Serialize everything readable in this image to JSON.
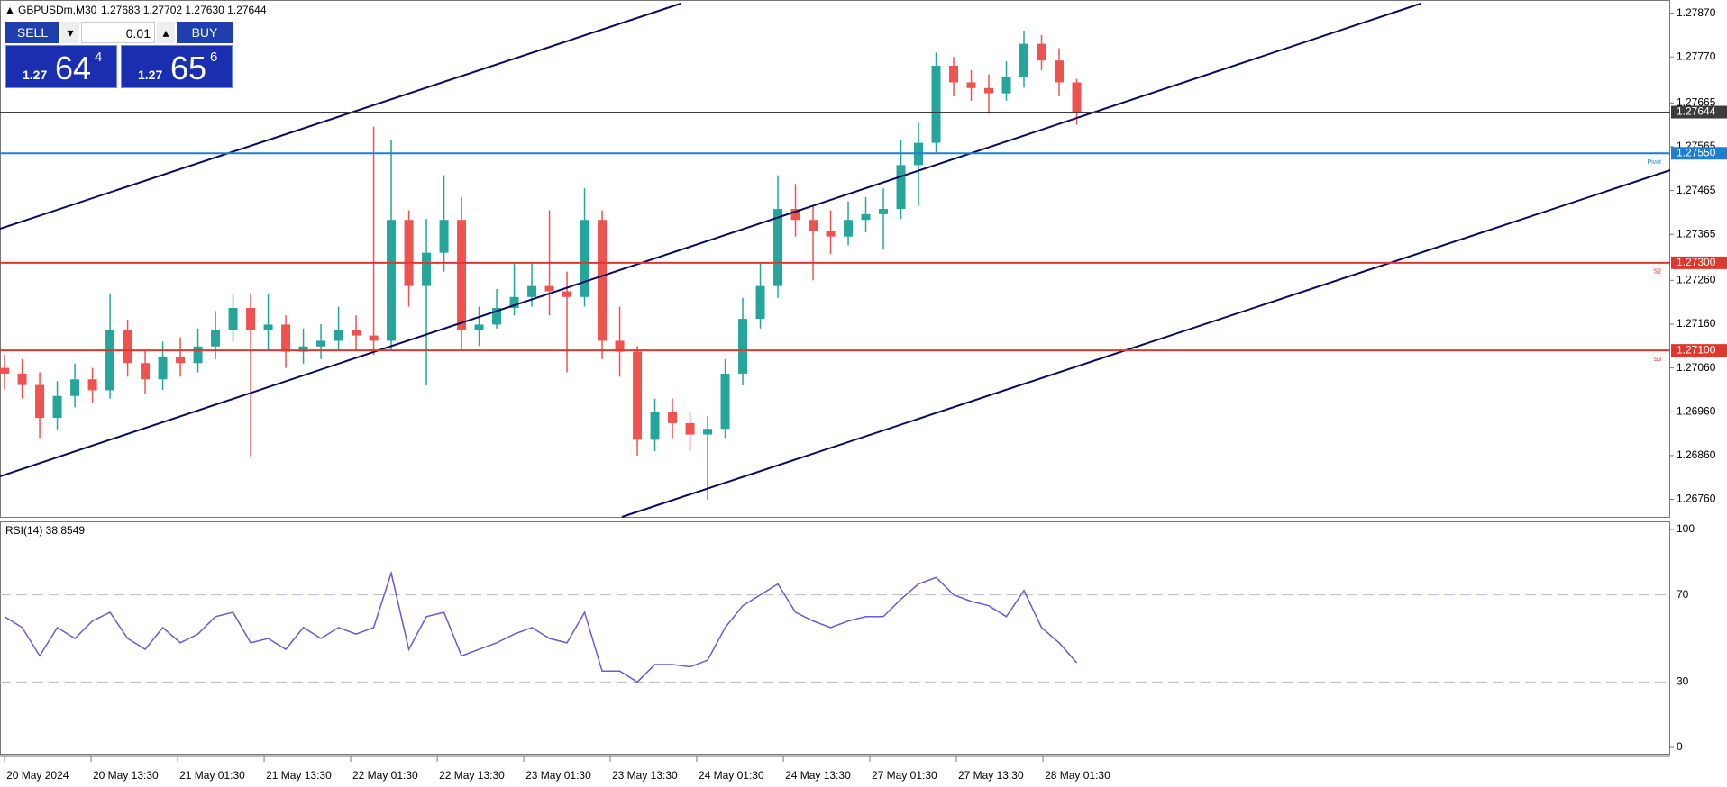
{
  "header": {
    "symbol": "GBPUSDm,M30",
    "quote": "1.27683 1.27702 1.27630 1.27644"
  },
  "trade_panel": {
    "sell": "SELL",
    "lot": "0.01",
    "buy": "BUY",
    "bid": {
      "prefix": "1.27",
      "big": "64",
      "pip": "4"
    },
    "ask": {
      "prefix": "1.27",
      "big": "65",
      "pip": "6"
    }
  },
  "chart_data": [
    {
      "type": "candlestick",
      "up_color": "#26a69a",
      "down_color": "#ef5350",
      "open": [
        1.2706,
        1.27047,
        1.27021,
        1.26946,
        1.26996,
        1.27034,
        1.27009,
        1.27147,
        1.27071,
        1.27034,
        1.27084,
        1.27071,
        1.27109,
        1.27147,
        1.27197,
        1.27147,
        1.27159,
        1.27097,
        1.27109,
        1.27122,
        1.27147,
        1.27134,
        1.27122,
        1.27398,
        1.27247,
        1.27323,
        1.27398,
        1.27147,
        1.27159,
        1.27197,
        1.27222,
        1.27247,
        1.27235,
        1.27222,
        1.27398,
        1.27122,
        1.27097,
        1.26896,
        1.26959,
        1.26934,
        1.26908,
        1.26921,
        1.27047,
        1.27172,
        1.27247,
        1.27423,
        1.27398,
        1.27373,
        1.2736,
        1.27398,
        1.27411,
        1.27423,
        1.27523,
        1.27574,
        1.2775,
        1.27712,
        1.27699,
        1.27687,
        1.27724,
        1.278,
        1.27762,
        1.27712
      ],
      "high": [
        1.2709,
        1.2708,
        1.2705,
        1.2703,
        1.2707,
        1.2706,
        1.2723,
        1.2717,
        1.271,
        1.2712,
        1.2713,
        1.2715,
        1.2719,
        1.2723,
        1.2723,
        1.2723,
        1.2718,
        1.2715,
        1.2716,
        1.272,
        1.2718,
        1.27611,
        1.2758,
        1.2742,
        1.274,
        1.275,
        1.2745,
        1.272,
        1.2724,
        1.273,
        1.273,
        1.2742,
        1.2728,
        1.2747,
        1.2742,
        1.272,
        1.2711,
        1.2699,
        1.2699,
        1.2696,
        1.2695,
        1.2708,
        1.2722,
        1.273,
        1.275,
        1.2748,
        1.2743,
        1.2742,
        1.2744,
        1.2745,
        1.2747,
        1.2758,
        1.2762,
        1.2778,
        1.2777,
        1.2774,
        1.2773,
        1.2776,
        1.2783,
        1.2782,
        1.2779,
        1.2772
      ],
      "low": [
        1.2701,
        1.2699,
        1.269,
        1.2692,
        1.2697,
        1.2698,
        1.2699,
        1.2704,
        1.27,
        1.2701,
        1.2704,
        1.2705,
        1.2708,
        1.2712,
        1.26858,
        1.271,
        1.2706,
        1.2707,
        1.2708,
        1.271,
        1.271,
        1.2709,
        1.271,
        1.272,
        1.2702,
        1.2728,
        1.271,
        1.2711,
        1.2715,
        1.2718,
        1.272,
        1.2718,
        1.2705,
        1.272,
        1.2708,
        1.2704,
        1.2686,
        1.2687,
        1.269,
        1.2687,
        1.26758,
        1.269,
        1.2702,
        1.2715,
        1.2722,
        1.2736,
        1.2726,
        1.2732,
        1.2734,
        1.2737,
        1.2733,
        1.274,
        1.2743,
        1.2755,
        1.2768,
        1.2767,
        1.2764,
        1.2767,
        1.277,
        1.2774,
        1.2768,
        1.27615
      ],
      "close": [
        1.27047,
        1.27021,
        1.26946,
        1.26996,
        1.27034,
        1.27009,
        1.27147,
        1.27071,
        1.27034,
        1.27084,
        1.27071,
        1.27109,
        1.27147,
        1.27197,
        1.27147,
        1.27159,
        1.27097,
        1.27109,
        1.27122,
        1.27147,
        1.27134,
        1.27122,
        1.27398,
        1.27247,
        1.27323,
        1.27398,
        1.27147,
        1.27159,
        1.27197,
        1.27222,
        1.27247,
        1.27235,
        1.27222,
        1.27398,
        1.27122,
        1.27097,
        1.26896,
        1.26959,
        1.26934,
        1.26908,
        1.26921,
        1.27047,
        1.27172,
        1.27247,
        1.27423,
        1.27398,
        1.27373,
        1.2736,
        1.27398,
        1.27411,
        1.27423,
        1.27523,
        1.27574,
        1.2775,
        1.27712,
        1.27699,
        1.27687,
        1.27724,
        1.278,
        1.27762,
        1.27712,
        1.27644
      ],
      "ylim": [
        1.2672,
        1.279
      ],
      "yticks": [
        {
          "value": 1.2787,
          "label": "1.27870"
        },
        {
          "value": 1.2777,
          "label": "1.27770"
        },
        {
          "value": 1.27665,
          "label": "1.27665"
        },
        {
          "value": 1.27565,
          "label": "1.27565"
        },
        {
          "value": 1.27465,
          "label": "1.27465"
        },
        {
          "value": 1.27365,
          "label": "1.27365"
        },
        {
          "value": 1.2726,
          "label": "1.27260"
        },
        {
          "value": 1.2716,
          "label": "1.27160"
        },
        {
          "value": 1.2706,
          "label": "1.27060"
        },
        {
          "value": 1.2696,
          "label": "1.26960"
        },
        {
          "value": 1.2686,
          "label": "1.26860"
        },
        {
          "value": 1.2676,
          "label": "1.26760"
        }
      ],
      "xlim": [
        -0.26,
        94.77
      ],
      "xticks": [
        {
          "value": 0,
          "label": "20 May 2024"
        },
        {
          "value": 4.92,
          "label": "20 May 13:30"
        },
        {
          "value": 9.85,
          "label": "21 May 01:30"
        },
        {
          "value": 14.77,
          "label": "21 May 13:30"
        },
        {
          "value": 19.69,
          "label": "22 May 01:30"
        },
        {
          "value": 24.62,
          "label": "22 May 13:30"
        },
        {
          "value": 29.54,
          "label": "23 May 01:30"
        },
        {
          "value": 34.46,
          "label": "23 May 13:30"
        },
        {
          "value": 39.38,
          "label": "24 May 01:30"
        },
        {
          "value": 44.31,
          "label": "24 May 13:30"
        },
        {
          "value": 49.23,
          "label": "27 May 01:30"
        },
        {
          "value": 54.15,
          "label": "27 May 13:30"
        },
        {
          "value": 59.08,
          "label": "28 May 01:30"
        }
      ],
      "levels": [
        {
          "value": 1.27644,
          "color": "#3c3c3c"
        },
        {
          "value": 1.2755,
          "label": "1.27550",
          "name": "Pivot",
          "color": "#1e7fd0"
        },
        {
          "value": 1.273,
          "label": "1.27300",
          "name": "S2",
          "color": "#e0362f"
        },
        {
          "value": 1.271,
          "label": "1.27100",
          "name": "S3",
          "color": "#e0362f"
        }
      ]
    },
    {
      "type": "line",
      "title": "RSI(14) 38.8549",
      "color": "#6a5acd",
      "values": [
        60,
        55,
        42,
        55,
        50,
        58,
        62,
        50,
        45,
        55,
        48,
        52,
        60,
        62,
        48,
        50,
        45,
        55,
        50,
        55,
        52,
        55,
        80,
        45,
        60,
        62,
        42,
        45,
        48,
        52,
        55,
        50,
        48,
        62,
        35,
        35,
        30,
        38,
        38,
        37,
        40,
        55,
        65,
        70,
        75,
        62,
        58,
        55,
        58,
        60,
        60,
        68,
        75,
        78,
        70,
        67,
        65,
        60,
        72,
        55,
        48,
        38.85
      ],
      "ylim": [
        0,
        100
      ],
      "yticks": [
        100,
        70,
        30,
        0
      ]
    }
  ]
}
